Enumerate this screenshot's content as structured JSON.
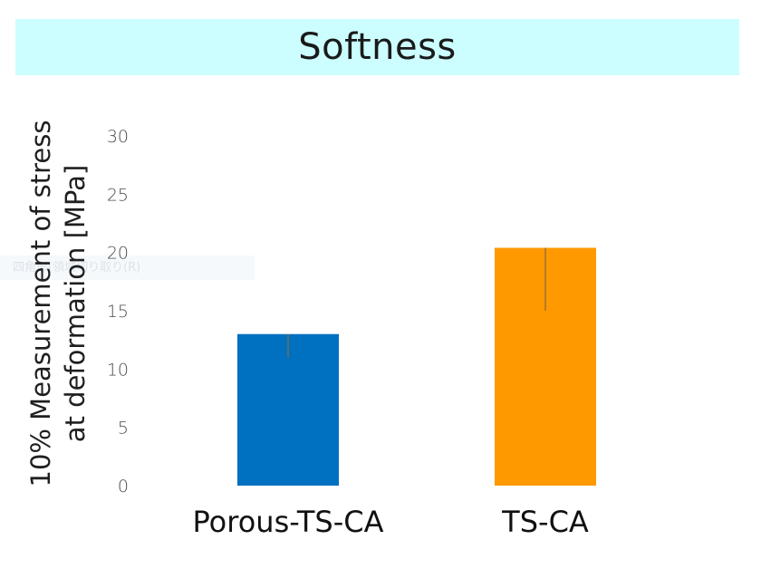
{
  "chart_data": {
    "type": "bar",
    "title": "Softness",
    "ylabel": "10% Measurement of stress at deformation [MPa]",
    "ylabel_lines": [
      "10% Measurement of stress",
      "at deformation [MPa]"
    ],
    "xlabel": "",
    "categories": [
      "Porous-TS-CA",
      "TS-CA"
    ],
    "values": [
      13.0,
      20.4
    ],
    "error_low": [
      11.0,
      15.0
    ],
    "error_high": [
      13.0,
      20.4
    ],
    "bar_colors": [
      "#0070c0",
      "#ff9900"
    ],
    "error_color": "#8a6d3b",
    "ylim": [
      0,
      30
    ],
    "yticks": [
      0,
      5,
      10,
      15,
      20,
      25,
      30
    ],
    "grid": false,
    "legend": "none"
  },
  "colors": {
    "title_banner": "#ccfeff"
  },
  "ghost_text": "四角形(領域切り取り(R)"
}
